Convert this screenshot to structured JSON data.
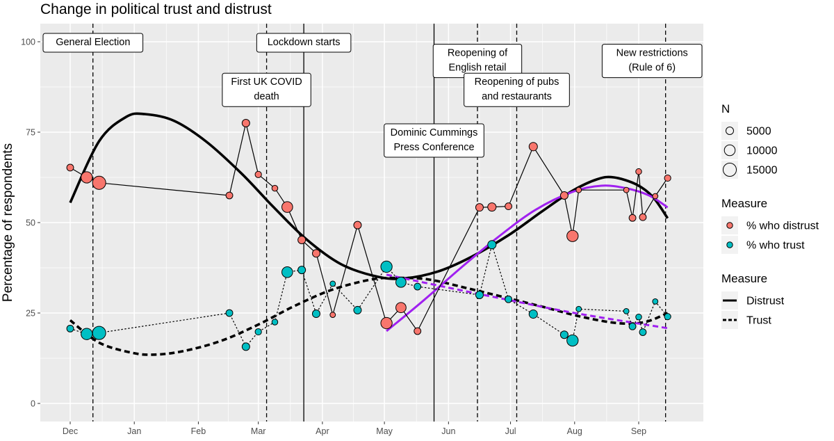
{
  "chart_data": {
    "type": "scatter",
    "title": "Change in political trust and distrust",
    "ylabel": "Percentage of respondents",
    "xlabel": "",
    "ylim": [
      0,
      100
    ],
    "yticks": [
      0,
      25,
      50,
      75,
      100
    ],
    "x_start_date": "2019-11-30",
    "x_ticks": [
      {
        "label": "Dec",
        "date": "2019-12-01"
      },
      {
        "label": "Jan",
        "date": "2020-01-01"
      },
      {
        "label": "Feb",
        "date": "2020-02-01"
      },
      {
        "label": "Mar",
        "date": "2020-03-01"
      },
      {
        "label": "Apr",
        "date": "2020-04-01"
      },
      {
        "label": "May",
        "date": "2020-05-01"
      },
      {
        "label": "Jun",
        "date": "2020-06-01"
      },
      {
        "label": "Jul",
        "date": "2020-07-01"
      },
      {
        "label": "Aug",
        "date": "2020-08-01"
      },
      {
        "label": "Sep",
        "date": "2020-09-01"
      }
    ],
    "grid": true,
    "colors": {
      "panel": "#EBEBEB",
      "grid": "#FFFFFF",
      "distrust": "#F8766D",
      "trust": "#00BFC4",
      "smooth": "#000000",
      "recent_fit": "#A020F0"
    },
    "events": [
      {
        "date": "2019-12-12",
        "style": "dashed",
        "label": [
          "General Election"
        ],
        "label_y": 100
      },
      {
        "date": "2020-03-05",
        "style": "dashed",
        "label": [
          "First UK COVID",
          "death"
        ],
        "label_y": 89
      },
      {
        "date": "2020-03-23",
        "style": "solid",
        "label": [
          "Lockdown starts"
        ],
        "label_y": 100
      },
      {
        "date": "2020-05-25",
        "style": "solid",
        "label": [
          "Dominic Cummings",
          "Press Conference"
        ],
        "label_y": 75
      },
      {
        "date": "2020-06-15",
        "style": "dashed",
        "label": [
          "Reopening of",
          "English retail"
        ],
        "label_y": 97
      },
      {
        "date": "2020-07-04",
        "style": "dashed",
        "label": [
          "Reopening of pubs",
          "and restaurants"
        ],
        "label_y": 89
      },
      {
        "date": "2020-09-14",
        "style": "dashed",
        "label": [
          "New restrictions",
          "(Rule of 6)"
        ],
        "label_y": 97
      }
    ],
    "series": [
      {
        "name": "% who distrust",
        "color": "#F8766D",
        "line_style": "solid",
        "points": [
          {
            "date": "2019-12-01",
            "y": 65.2,
            "n": 4000
          },
          {
            "date": "2019-12-09",
            "y": 62.5,
            "n": 11000
          },
          {
            "date": "2019-12-15",
            "y": 61.0,
            "n": 15000
          },
          {
            "date": "2020-02-16",
            "y": 57.5,
            "n": 4000
          },
          {
            "date": "2020-02-24",
            "y": 77.5,
            "n": 5000
          },
          {
            "date": "2020-03-01",
            "y": 63.3,
            "n": 3500
          },
          {
            "date": "2020-03-09",
            "y": 59.5,
            "n": 3000
          },
          {
            "date": "2020-03-15",
            "y": 54.3,
            "n": 10000
          },
          {
            "date": "2020-03-22",
            "y": 45.2,
            "n": 5000
          },
          {
            "date": "2020-03-29",
            "y": 41.5,
            "n": 5000
          },
          {
            "date": "2020-04-06",
            "y": 24.5,
            "n": 2500
          },
          {
            "date": "2020-04-18",
            "y": 49.3,
            "n": 5000
          },
          {
            "date": "2020-05-02",
            "y": 22.2,
            "n": 11000
          },
          {
            "date": "2020-05-09",
            "y": 26.5,
            "n": 9000
          },
          {
            "date": "2020-05-17",
            "y": 20.0,
            "n": 4000
          },
          {
            "date": "2020-06-16",
            "y": 54.2,
            "n": 5000
          },
          {
            "date": "2020-06-22",
            "y": 54.3,
            "n": 6000
          },
          {
            "date": "2020-06-30",
            "y": 54.5,
            "n": 4000
          },
          {
            "date": "2020-07-12",
            "y": 71.0,
            "n": 6000
          },
          {
            "date": "2020-07-27",
            "y": 57.5,
            "n": 5000
          },
          {
            "date": "2020-07-31",
            "y": 46.3,
            "n": 11000
          },
          {
            "date": "2020-08-03",
            "y": 59.0,
            "n": 2500
          },
          {
            "date": "2020-08-26",
            "y": 59.0,
            "n": 2500
          },
          {
            "date": "2020-08-29",
            "y": 51.3,
            "n": 4000
          },
          {
            "date": "2020-09-01",
            "y": 64.1,
            "n": 3000
          },
          {
            "date": "2020-09-03",
            "y": 51.5,
            "n": 4000
          },
          {
            "date": "2020-09-09",
            "y": 57.3,
            "n": 2500
          },
          {
            "date": "2020-09-15",
            "y": 62.3,
            "n": 3500
          }
        ]
      },
      {
        "name": "% who trust",
        "color": "#00BFC4",
        "line_style": "dotted",
        "points": [
          {
            "date": "2019-12-01",
            "y": 20.7,
            "n": 4000
          },
          {
            "date": "2019-12-09",
            "y": 19.2,
            "n": 11000
          },
          {
            "date": "2019-12-15",
            "y": 19.5,
            "n": 15000
          },
          {
            "date": "2020-02-16",
            "y": 25.0,
            "n": 4000
          },
          {
            "date": "2020-02-24",
            "y": 15.7,
            "n": 5000
          },
          {
            "date": "2020-03-01",
            "y": 19.8,
            "n": 3500
          },
          {
            "date": "2020-03-09",
            "y": 22.5,
            "n": 3000
          },
          {
            "date": "2020-03-15",
            "y": 36.3,
            "n": 10000
          },
          {
            "date": "2020-03-22",
            "y": 36.9,
            "n": 5000
          },
          {
            "date": "2020-03-29",
            "y": 24.8,
            "n": 5000
          },
          {
            "date": "2020-04-06",
            "y": 33.1,
            "n": 2500
          },
          {
            "date": "2020-04-18",
            "y": 25.8,
            "n": 5000
          },
          {
            "date": "2020-05-02",
            "y": 37.8,
            "n": 11000
          },
          {
            "date": "2020-05-09",
            "y": 33.5,
            "n": 9000
          },
          {
            "date": "2020-05-17",
            "y": 32.3,
            "n": 4000
          },
          {
            "date": "2020-06-16",
            "y": 30.0,
            "n": 5000
          },
          {
            "date": "2020-06-22",
            "y": 43.9,
            "n": 6000
          },
          {
            "date": "2020-06-30",
            "y": 28.8,
            "n": 4000
          },
          {
            "date": "2020-07-12",
            "y": 24.7,
            "n": 6000
          },
          {
            "date": "2020-07-27",
            "y": 19.0,
            "n": 5000
          },
          {
            "date": "2020-07-31",
            "y": 17.4,
            "n": 11000
          },
          {
            "date": "2020-08-03",
            "y": 26.1,
            "n": 2500
          },
          {
            "date": "2020-08-26",
            "y": 25.5,
            "n": 2500
          },
          {
            "date": "2020-08-29",
            "y": 21.3,
            "n": 4000
          },
          {
            "date": "2020-09-01",
            "y": 23.9,
            "n": 3000
          },
          {
            "date": "2020-09-03",
            "y": 19.7,
            "n": 4000
          },
          {
            "date": "2020-09-09",
            "y": 28.2,
            "n": 2500
          },
          {
            "date": "2020-09-15",
            "y": 24.0,
            "n": 3500
          }
        ]
      }
    ],
    "smooth_curves": [
      {
        "name": "Distrust",
        "color": "#000000",
        "dash": "solid",
        "points": [
          {
            "date": "2019-12-01",
            "y": 55.5
          },
          {
            "date": "2019-12-15",
            "y": 72.5
          },
          {
            "date": "2019-12-28",
            "y": 79.2
          },
          {
            "date": "2020-01-06",
            "y": 80.0
          },
          {
            "date": "2020-01-20",
            "y": 78.2
          },
          {
            "date": "2020-02-05",
            "y": 72.3
          },
          {
            "date": "2020-02-22",
            "y": 63.5
          },
          {
            "date": "2020-03-08",
            "y": 54.5
          },
          {
            "date": "2020-03-24",
            "y": 45.5
          },
          {
            "date": "2020-04-10",
            "y": 38.5
          },
          {
            "date": "2020-04-28",
            "y": 35.0
          },
          {
            "date": "2020-05-11",
            "y": 34.6
          },
          {
            "date": "2020-05-27",
            "y": 36.5
          },
          {
            "date": "2020-06-12",
            "y": 40.5
          },
          {
            "date": "2020-06-30",
            "y": 46.5
          },
          {
            "date": "2020-07-16",
            "y": 53.0
          },
          {
            "date": "2020-07-31",
            "y": 58.8
          },
          {
            "date": "2020-08-12",
            "y": 62.0
          },
          {
            "date": "2020-08-20",
            "y": 62.5
          },
          {
            "date": "2020-08-31",
            "y": 60.5
          },
          {
            "date": "2020-09-08",
            "y": 57.0
          },
          {
            "date": "2020-09-15",
            "y": 51.2
          }
        ]
      },
      {
        "name": "Trust",
        "color": "#000000",
        "dash": "dashed",
        "points": [
          {
            "date": "2019-12-01",
            "y": 23.0
          },
          {
            "date": "2019-12-15",
            "y": 16.8
          },
          {
            "date": "2019-12-31",
            "y": 14.0
          },
          {
            "date": "2020-01-11",
            "y": 13.5
          },
          {
            "date": "2020-01-25",
            "y": 14.5
          },
          {
            "date": "2020-02-12",
            "y": 17.3
          },
          {
            "date": "2020-03-01",
            "y": 21.8
          },
          {
            "date": "2020-03-18",
            "y": 26.8
          },
          {
            "date": "2020-04-05",
            "y": 31.3
          },
          {
            "date": "2020-04-24",
            "y": 34.2
          },
          {
            "date": "2020-05-06",
            "y": 34.7
          },
          {
            "date": "2020-05-22",
            "y": 34.3
          },
          {
            "date": "2020-06-09",
            "y": 32.0
          },
          {
            "date": "2020-06-27",
            "y": 29.5
          },
          {
            "date": "2020-07-16",
            "y": 26.8
          },
          {
            "date": "2020-08-04",
            "y": 24.0
          },
          {
            "date": "2020-08-22",
            "y": 22.2
          },
          {
            "date": "2020-09-04",
            "y": 22.5
          },
          {
            "date": "2020-09-15",
            "y": 25.0
          }
        ]
      },
      {
        "name": "distrust-since-may",
        "color": "#A020F0",
        "dash": "solid",
        "points": [
          {
            "date": "2020-05-02",
            "y": 20.0
          },
          {
            "date": "2020-05-20",
            "y": 28.5
          },
          {
            "date": "2020-06-07",
            "y": 37.5
          },
          {
            "date": "2020-06-25",
            "y": 46.0
          },
          {
            "date": "2020-07-13",
            "y": 53.5
          },
          {
            "date": "2020-07-31",
            "y": 58.5
          },
          {
            "date": "2020-08-14",
            "y": 60.2
          },
          {
            "date": "2020-08-26",
            "y": 59.5
          },
          {
            "date": "2020-09-06",
            "y": 57.5
          },
          {
            "date": "2020-09-15",
            "y": 54.2
          }
        ]
      },
      {
        "name": "trust-since-may",
        "color": "#A020F0",
        "dash": "dashed",
        "points": [
          {
            "date": "2020-05-02",
            "y": 35.6
          },
          {
            "date": "2020-06-01",
            "y": 32.0
          },
          {
            "date": "2020-07-01",
            "y": 28.5
          },
          {
            "date": "2020-08-01",
            "y": 25.0
          },
          {
            "date": "2020-09-15",
            "y": 20.8
          }
        ]
      }
    ],
    "legends": [
      {
        "title": "N",
        "type": "size",
        "entries": [
          {
            "label": "5000",
            "n": 5000
          },
          {
            "label": "10000",
            "n": 10000
          },
          {
            "label": "15000",
            "n": 15000
          }
        ]
      },
      {
        "title": "Measure",
        "type": "points",
        "entries": [
          {
            "label": "% who distrust",
            "color": "#F8766D"
          },
          {
            "label": "% who trust",
            "color": "#00BFC4"
          }
        ]
      },
      {
        "title": "Measure",
        "type": "lines",
        "entries": [
          {
            "label": "Distrust",
            "dash": "solid"
          },
          {
            "label": "Trust",
            "dash": "dashed"
          }
        ]
      }
    ],
    "legend_position": "right"
  }
}
